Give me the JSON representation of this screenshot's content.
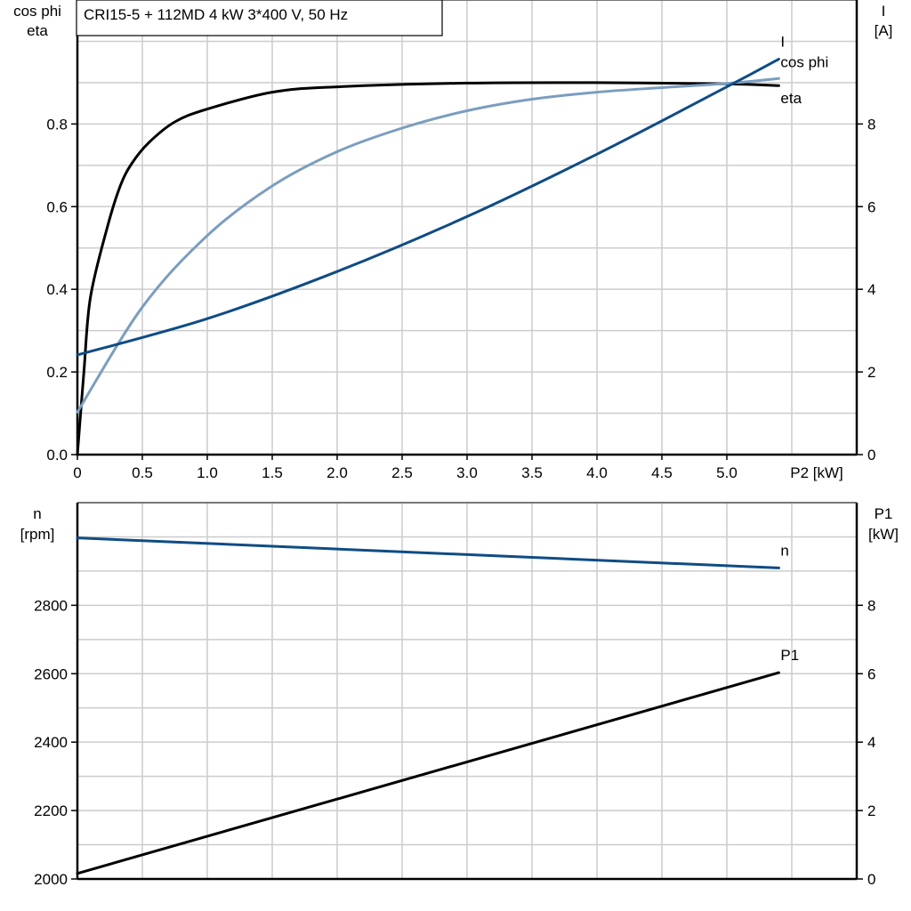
{
  "title": "CRI15-5 + 112MD   4 kW   3*400 V, 50 Hz",
  "colors": {
    "eta": "#000000",
    "cos_phi": "#7b9dbf",
    "current": "#0f4c84",
    "n": "#0f4c84",
    "P1": "#000000",
    "grid": "#cccccc"
  },
  "chart_data": [
    {
      "type": "line",
      "xlabel": "P2 [kW]",
      "ylabel_left": [
        "cos phi",
        "eta"
      ],
      "ylabel_right": [
        "I",
        "[A]"
      ],
      "xlim": [
        0,
        6
      ],
      "ylim_left": [
        0,
        1.1
      ],
      "ylim_right": [
        0,
        11
      ],
      "x_ticks": [
        "0",
        "0.5",
        "1.0",
        "1.5",
        "2.0",
        "2.5",
        "3.0",
        "3.5",
        "4.0",
        "4.5",
        "5.0"
      ],
      "y_left_ticks": [
        "0.0",
        "0.2",
        "0.4",
        "0.6",
        "0.8"
      ],
      "y_right_ticks": [
        "0",
        "2",
        "4",
        "6",
        "8"
      ],
      "grid": true,
      "series": [
        {
          "name": "eta",
          "axis": "left",
          "color_key": "eta",
          "x": [
            0,
            0.05,
            0.1,
            0.23,
            0.33,
            0.42,
            0.55,
            0.75,
            1.0,
            1.5,
            2.0,
            3.0,
            4.0,
            5.0,
            5.4
          ],
          "y": [
            0,
            0.2,
            0.38,
            0.55,
            0.65,
            0.705,
            0.755,
            0.805,
            0.836,
            0.877,
            0.89,
            0.899,
            0.9,
            0.897,
            0.893
          ]
        },
        {
          "name": "cos phi",
          "axis": "left",
          "color_key": "cos_phi",
          "x": [
            0,
            0.5,
            1.0,
            1.5,
            2.0,
            2.5,
            3.0,
            3.5,
            4.0,
            4.5,
            5.0,
            5.4
          ],
          "y": [
            0.103,
            0.357,
            0.53,
            0.65,
            0.733,
            0.79,
            0.832,
            0.86,
            0.877,
            0.888,
            0.898,
            0.91
          ]
        },
        {
          "name": "I",
          "axis": "right",
          "color_key": "current",
          "x": [
            0,
            1.0,
            2.0,
            3.0,
            4.0,
            5.0,
            5.4
          ],
          "y": [
            2.41,
            3.29,
            4.43,
            5.76,
            7.27,
            8.9,
            9.57
          ]
        }
      ]
    },
    {
      "type": "line",
      "ylabel_left": [
        "n",
        "[rpm]"
      ],
      "ylabel_right": [
        "P1",
        "[kW]"
      ],
      "xlim": [
        0,
        6
      ],
      "ylim_left": [
        2000,
        3100
      ],
      "ylim_right": [
        0,
        11
      ],
      "y_left_ticks": [
        "2000",
        "2200",
        "2400",
        "2600",
        "2800"
      ],
      "y_right_ticks": [
        "0",
        "2",
        "4",
        "6",
        "8"
      ],
      "grid": true,
      "series": [
        {
          "name": "n",
          "axis": "left",
          "color_key": "n",
          "x": [
            0,
            5.4
          ],
          "y": [
            2997,
            2909
          ]
        },
        {
          "name": "P1",
          "axis": "right",
          "color_key": "P1",
          "x": [
            0,
            5.4
          ],
          "y": [
            0.16,
            6.03
          ]
        }
      ]
    }
  ]
}
